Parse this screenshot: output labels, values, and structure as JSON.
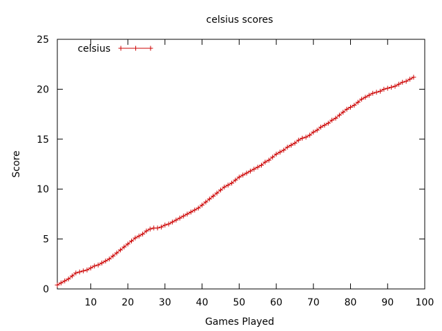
{
  "chart_data": {
    "type": "line",
    "title": "celsius scores",
    "xlabel": "Games Played",
    "ylabel": "Score",
    "xlim": [
      1,
      100
    ],
    "ylim": [
      0,
      25
    ],
    "xticks": [
      10,
      20,
      30,
      40,
      50,
      60,
      70,
      80,
      90,
      100
    ],
    "yticks": [
      0,
      5,
      10,
      15,
      20,
      25
    ],
    "grid": false,
    "legend_position": "top-left",
    "series": [
      {
        "name": "celsius",
        "color": "#cc0000",
        "marker": "plus",
        "x": [
          1,
          2,
          3,
          4,
          5,
          6,
          7,
          8,
          9,
          10,
          11,
          12,
          13,
          14,
          15,
          16,
          17,
          18,
          19,
          20,
          21,
          22,
          23,
          24,
          25,
          26,
          27,
          28,
          29,
          30,
          31,
          32,
          33,
          34,
          35,
          36,
          37,
          38,
          39,
          40,
          41,
          42,
          43,
          44,
          45,
          46,
          47,
          48,
          49,
          50,
          51,
          52,
          53,
          54,
          55,
          56,
          57,
          58,
          59,
          60,
          61,
          62,
          63,
          64,
          65,
          66,
          67,
          68,
          69,
          70,
          71,
          72,
          73,
          74,
          75,
          76,
          77,
          78,
          79,
          80,
          81,
          82,
          83,
          84,
          85,
          86,
          87,
          88,
          89,
          90,
          91,
          92,
          93,
          94,
          95,
          96,
          97
        ],
        "y": [
          0.4,
          0.6,
          0.8,
          1.0,
          1.3,
          1.6,
          1.7,
          1.8,
          1.9,
          2.1,
          2.3,
          2.4,
          2.6,
          2.8,
          3.0,
          3.3,
          3.6,
          3.9,
          4.2,
          4.5,
          4.8,
          5.1,
          5.3,
          5.5,
          5.8,
          6.0,
          6.1,
          6.1,
          6.2,
          6.4,
          6.5,
          6.7,
          6.9,
          7.1,
          7.3,
          7.5,
          7.7,
          7.9,
          8.1,
          8.4,
          8.7,
          9.0,
          9.3,
          9.6,
          9.9,
          10.2,
          10.4,
          10.6,
          10.9,
          11.2,
          11.4,
          11.6,
          11.8,
          12.0,
          12.2,
          12.4,
          12.7,
          12.9,
          13.2,
          13.5,
          13.7,
          13.9,
          14.2,
          14.4,
          14.6,
          14.9,
          15.1,
          15.2,
          15.4,
          15.7,
          15.9,
          16.2,
          16.4,
          16.6,
          16.9,
          17.1,
          17.4,
          17.7,
          18.0,
          18.2,
          18.4,
          18.7,
          19.0,
          19.2,
          19.4,
          19.6,
          19.7,
          19.8,
          20.0,
          20.1,
          20.2,
          20.3,
          20.5,
          20.7,
          20.8,
          21.0,
          21.2
        ]
      }
    ]
  }
}
